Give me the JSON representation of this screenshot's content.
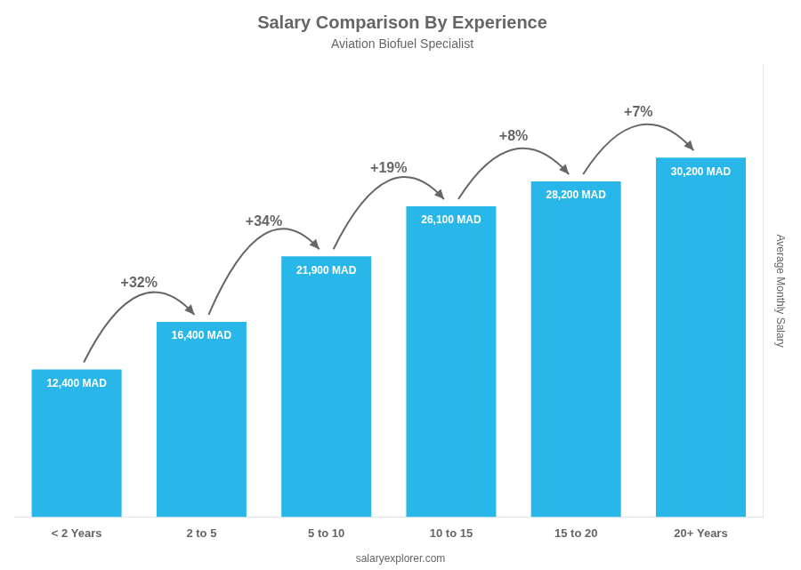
{
  "chart_data": {
    "type": "bar",
    "title": "Salary Comparison By Experience",
    "subtitle": "Aviation Biofuel Specialist",
    "categories": [
      "< 2 Years",
      "2 to 5",
      "5 to 10",
      "10 to 15",
      "15 to 20",
      "20+ Years"
    ],
    "values": [
      12400,
      16400,
      21900,
      26100,
      28200,
      30200
    ],
    "value_labels": [
      "12,400 MAD",
      "16,400 MAD",
      "21,900 MAD",
      "26,100 MAD",
      "28,200 MAD",
      "30,200 MAD"
    ],
    "data_labels": true,
    "annotations": [
      "+32%",
      "+34%",
      "+19%",
      "+8%",
      "+7%"
    ],
    "y_label": "Average Monthly Salary",
    "footer": "salaryexplorer.com",
    "color": "#29b6e8",
    "ylim": [
      0,
      38000
    ],
    "tick_labels": "x",
    "grid": false
  }
}
